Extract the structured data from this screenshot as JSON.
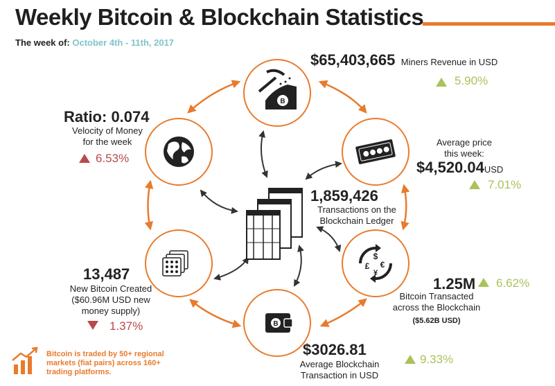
{
  "header": {
    "title": "Weekly Bitcoin & Blockchain Statistics",
    "week_label": "The week of:",
    "week_dates": "October 4th - 11th, 2017"
  },
  "colors": {
    "accent": "#e87b2c",
    "up": "#a9c25a",
    "down": "#b84a4a",
    "teal": "#7fc4c9"
  },
  "stats": {
    "miners": {
      "value": "$65,403,665",
      "label": "Miners Revenue in USD",
      "change": "5.90%",
      "direction": "up",
      "icon": "mining-pickaxe-icon"
    },
    "price": {
      "label_line1": "Average price",
      "label_line2": "this week:",
      "value": "$4,520.04",
      "unit": "USD",
      "change": "7.01%",
      "direction": "up",
      "icon": "banknotes-icon"
    },
    "transacted": {
      "value": "1.25M",
      "label_line1": "Bitcoin Transacted",
      "label_line2": "across the Blockchain",
      "sub": "($5.62B USD)",
      "change": "6.62%",
      "direction": "up",
      "icon": "currency-exchange-icon"
    },
    "avg_tx": {
      "value": "$3026.81",
      "label_line1": "Average Blockchain",
      "label_line2": "Transaction in USD",
      "change": "9.33%",
      "direction": "up",
      "icon": "wallet-icon"
    },
    "new_coins": {
      "value": "13,487",
      "label_line1": "New Bitcoin Created",
      "label_line2": "($60.96M USD new",
      "label_line3": "money supply)",
      "change": "1.37%",
      "direction": "down",
      "icon": "coin-stacks-icon"
    },
    "velocity": {
      "value": "Ratio: 0.074",
      "label_line1": "Velocity of Money",
      "label_line2": "for the week",
      "change": "6.53%",
      "direction": "up",
      "icon": "globe-icon"
    },
    "center": {
      "value": "1,859,426",
      "label_line1": "Transactions on the",
      "label_line2": "Blockchain Ledger",
      "icon": "ledger-icon"
    }
  },
  "footnote": {
    "text": "Bitcoin is traded by 50+ regional markets (fiat pairs) across 160+ trading platforms.",
    "icon": "growth-chart-icon"
  }
}
